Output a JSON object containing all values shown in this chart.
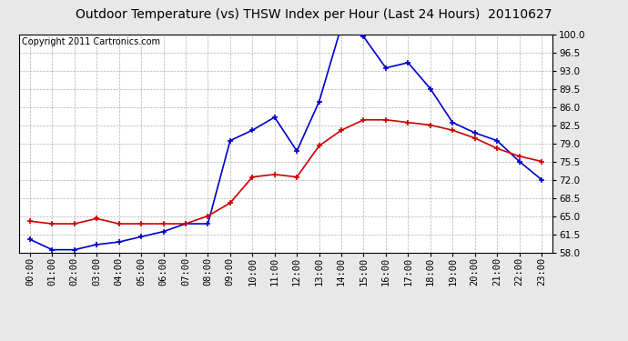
{
  "title": "Outdoor Temperature (vs) THSW Index per Hour (Last 24 Hours)  20110627",
  "copyright": "Copyright 2011 Cartronics.com",
  "hours": [
    0,
    1,
    2,
    3,
    4,
    5,
    6,
    7,
    8,
    9,
    10,
    11,
    12,
    13,
    14,
    15,
    16,
    17,
    18,
    19,
    20,
    21,
    22,
    23
  ],
  "temp_red": [
    64.0,
    63.5,
    63.5,
    64.5,
    63.5,
    63.5,
    63.5,
    63.5,
    65.0,
    67.5,
    72.5,
    73.0,
    72.5,
    78.5,
    81.5,
    83.5,
    83.5,
    83.0,
    82.5,
    81.5,
    80.0,
    78.0,
    76.5,
    75.5
  ],
  "thsw_blue": [
    60.5,
    58.5,
    58.5,
    59.5,
    60.0,
    61.0,
    62.0,
    63.5,
    63.5,
    79.5,
    81.5,
    84.0,
    77.5,
    87.0,
    101.5,
    99.5,
    93.5,
    94.5,
    89.5,
    83.0,
    81.0,
    79.5,
    75.5,
    72.0
  ],
  "ylim": [
    58.0,
    100.0
  ],
  "yticks": [
    58.0,
    61.5,
    65.0,
    68.5,
    72.0,
    75.5,
    79.0,
    82.5,
    86.0,
    89.5,
    93.0,
    96.5,
    100.0
  ],
  "temp_color": "#cc0000",
  "thsw_color": "#0000cc",
  "outer_bg": "#e8e8e8",
  "plot_bg_color": "#ffffff",
  "grid_color": "#b0b0b0",
  "title_fontsize": 10,
  "tick_fontsize": 7.5,
  "copyright_fontsize": 7,
  "marker": "+",
  "marker_size": 5,
  "marker_lw": 1.2,
  "line_width": 1.2
}
